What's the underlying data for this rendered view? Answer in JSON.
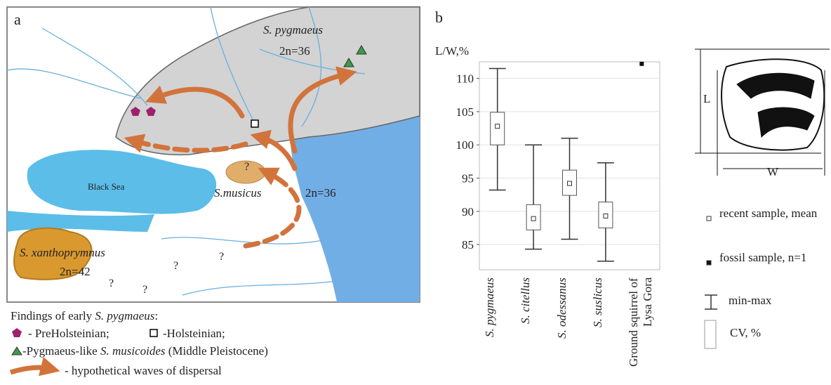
{
  "panel_a": {
    "label": "a",
    "range_name": "S. pygmaeus",
    "range_karyotype": "2n=36",
    "sea_name": "Black Sea",
    "musicus_name": "S.musicus",
    "musicus_karyotype": "2n=36",
    "xanthoprymnus_name": "S. xanthoprymnus",
    "xanthoprymnus_karyotype": "2n=42",
    "question_marks": [
      "?",
      "?",
      "?",
      "?",
      "?"
    ],
    "legend": {
      "title": [
        "Findings of early ",
        "S. pygmaeus",
        ":"
      ],
      "preholsteinian": "- PreHolsteinian;",
      "holsteinian": "-Holsteinian;",
      "musicoides": [
        "-Pygmaeus-like ",
        "S. musicoides",
        " (Middle Pleistocene)"
      ],
      "dispersal": "- hypothetical waves of   dispersal"
    }
  },
  "chart_data": {
    "type": "box",
    "panel_label": "b",
    "y_label": "L/W,%",
    "categories": [
      "S. pygmaeus",
      "S. citellus",
      "S. odessanus",
      "S. suslicus",
      "Ground squirrel of Lysa Gora"
    ],
    "category_italic": [
      true,
      true,
      true,
      true,
      false
    ],
    "min": [
      93.2,
      84.3,
      85.8,
      82.5,
      null
    ],
    "max": [
      111.5,
      100,
      101,
      97.3,
      null
    ],
    "mean": [
      102.8,
      88.9,
      94.2,
      89.3,
      null
    ],
    "cv_low": [
      100,
      87.2,
      92.4,
      87.5,
      null
    ],
    "cv_high": [
      104.9,
      91,
      96.2,
      91.4,
      null
    ],
    "fossil": [
      null,
      null,
      null,
      null,
      112.2
    ],
    "ylim": [
      81.2,
      112.5
    ],
    "yticks": [
      85,
      90,
      95,
      100,
      105,
      110
    ],
    "grid": true,
    "legend": {
      "mean": "recent sample, mean",
      "fossil": "fossil sample, n=1",
      "range": "min-max",
      "cv": "CV,  %"
    },
    "diagram": {
      "length": "L",
      "width": "W"
    }
  }
}
